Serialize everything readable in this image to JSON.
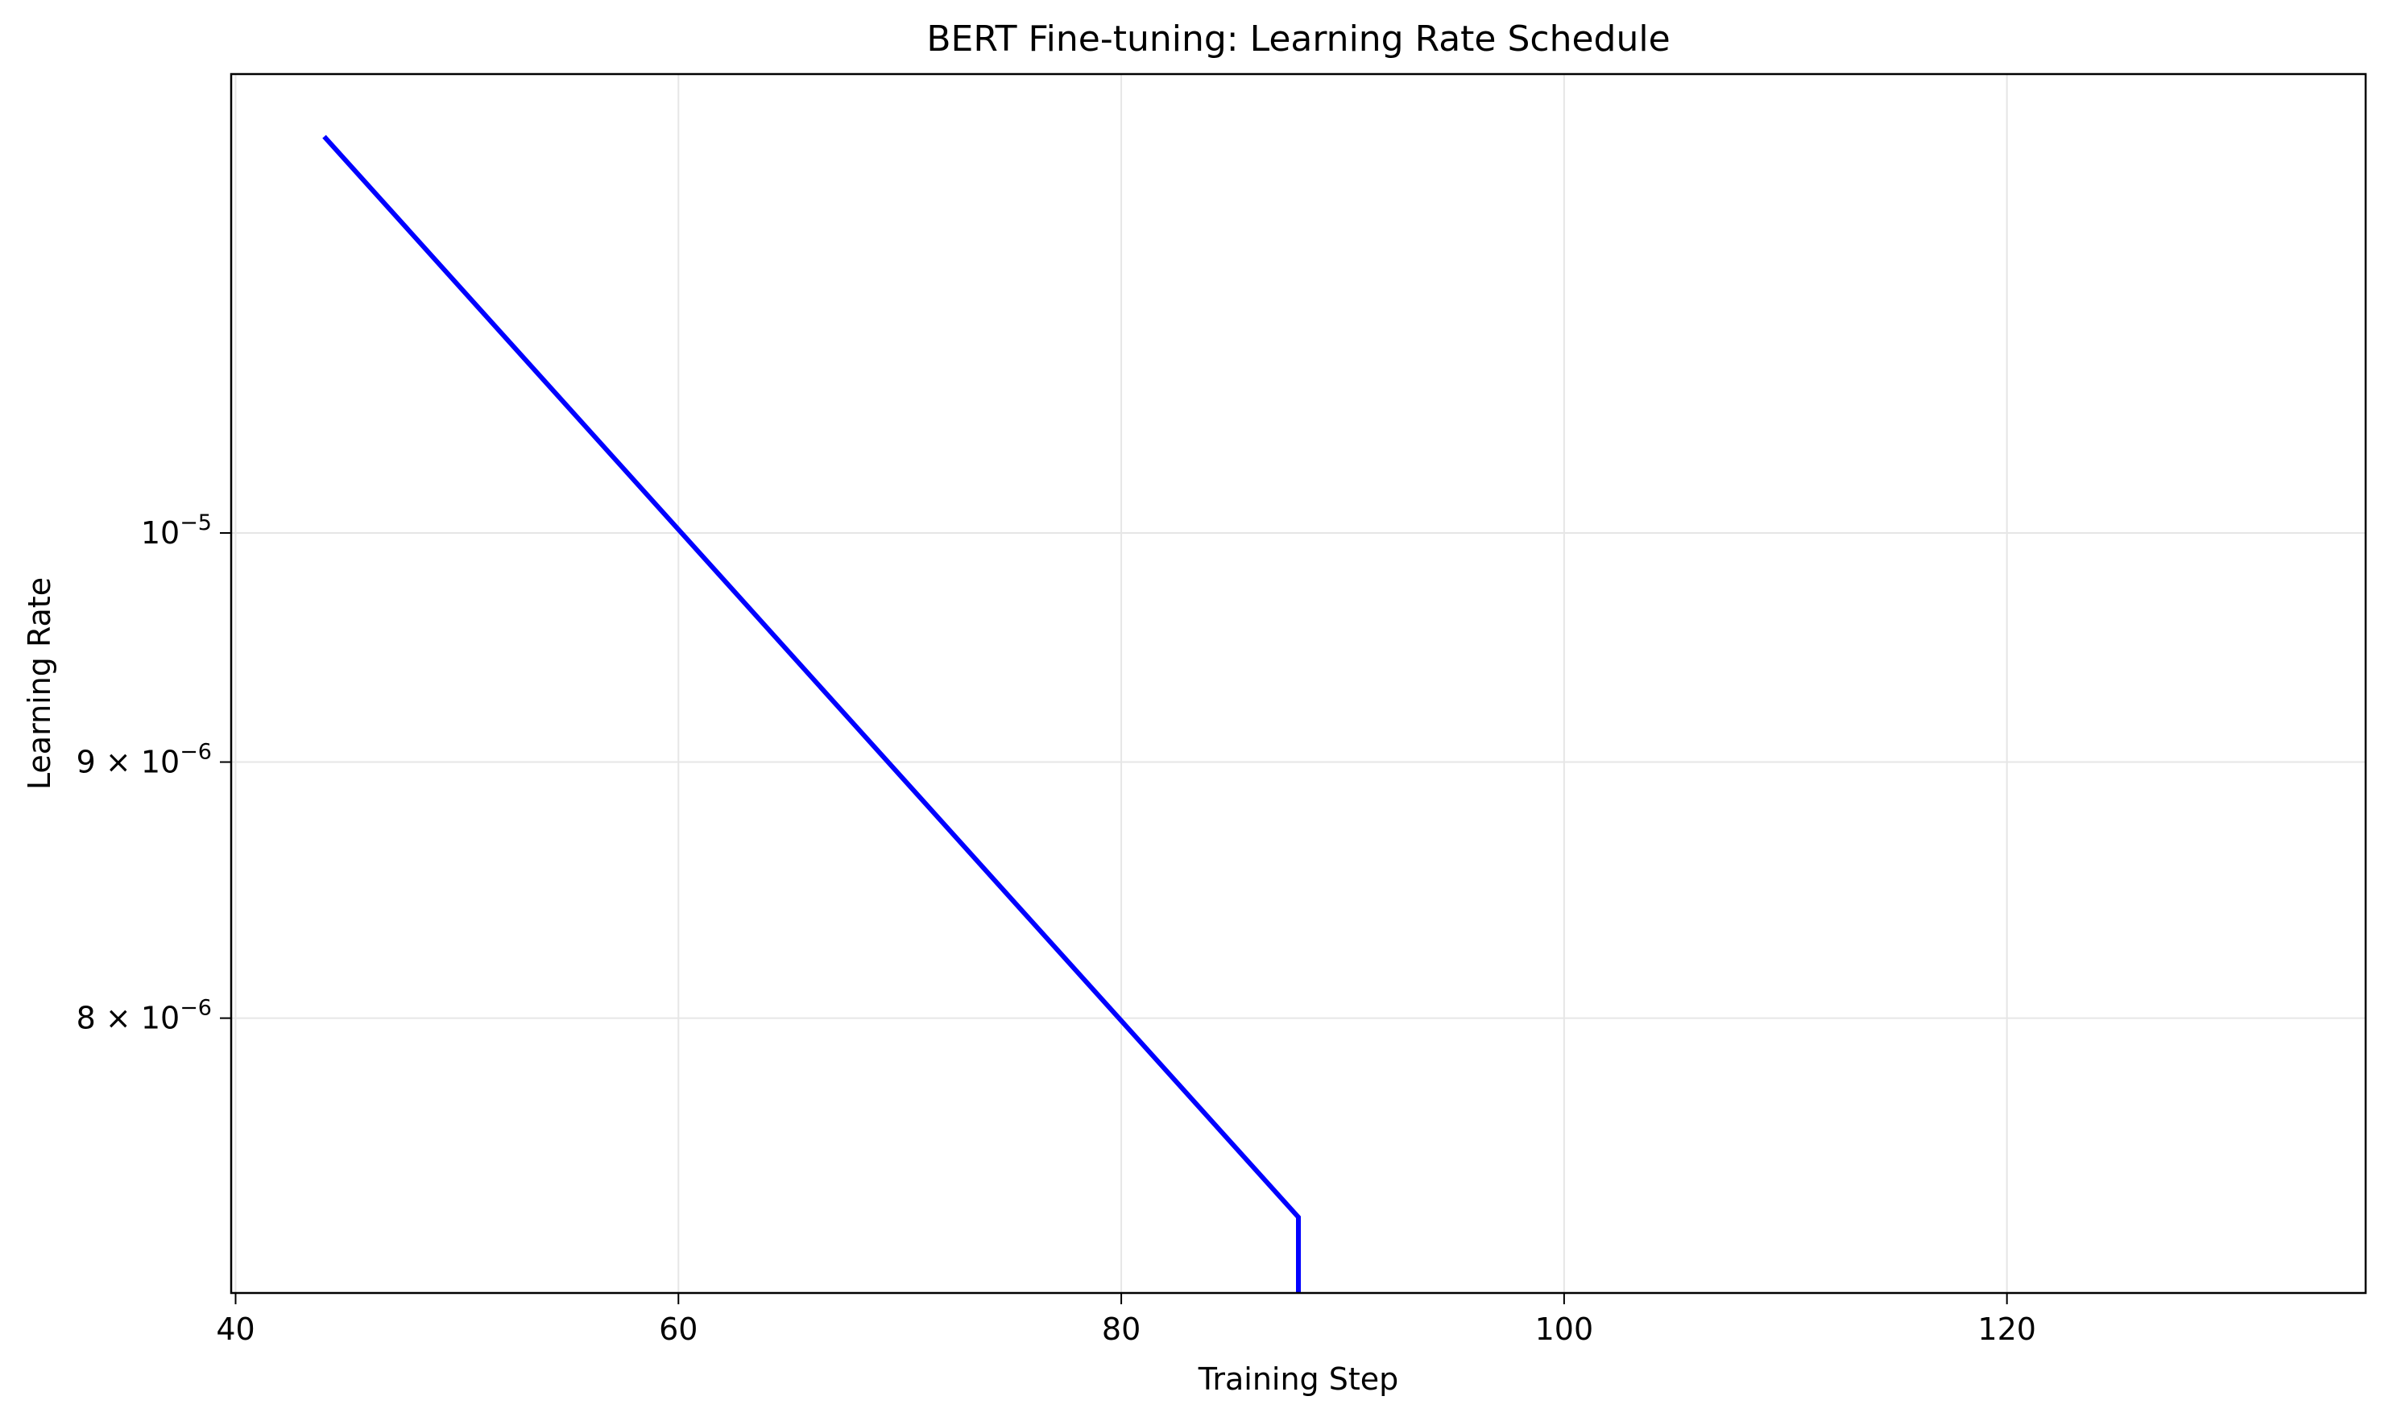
{
  "chart_data": {
    "type": "line",
    "title": "BERT Fine-tuning: Learning Rate Schedule",
    "xlabel": "Training Step",
    "ylabel": "Learning Rate",
    "xlim": [
      39.8,
      136.2
    ],
    "ylim": [
      7.05e-06,
      1.235e-05
    ],
    "yscale": "log",
    "grid": true,
    "x_ticks": [
      {
        "value": 40,
        "label": "40"
      },
      {
        "value": 60,
        "label": "60"
      },
      {
        "value": 80,
        "label": "80"
      },
      {
        "value": 100,
        "label": "100"
      },
      {
        "value": 120,
        "label": "120"
      }
    ],
    "y_ticks": [
      {
        "value": 8e-06,
        "base": "8 × 10",
        "exp": "−6"
      },
      {
        "value": 9e-06,
        "base": "9 × 10",
        "exp": "−6"
      },
      {
        "value": 1e-05,
        "base": "10",
        "exp": "−5"
      }
    ],
    "series": [
      {
        "color": "#0000ff",
        "x": [
          44,
          88,
          88
        ],
        "y": [
          1.2e-05,
          7.3e-06,
          7e-06
        ]
      }
    ]
  }
}
